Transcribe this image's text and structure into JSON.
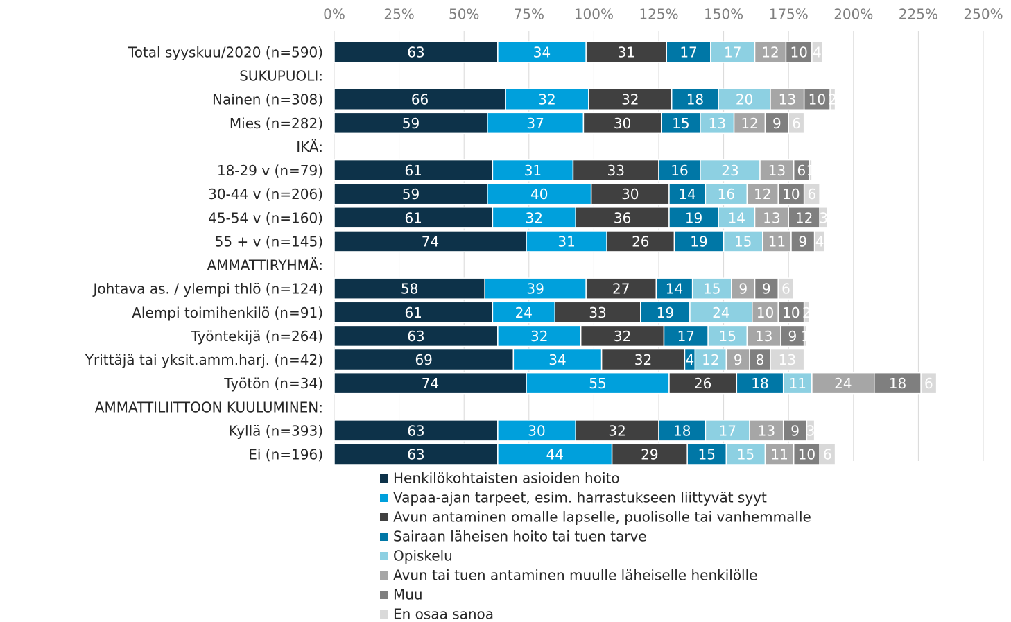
{
  "chart_data": {
    "type": "stacked_bar_horizontal",
    "categories": [
      "Total syyskuu/2020 (n=590)",
      "SUKUPUOLI:",
      "Nainen (n=308)",
      "Mies (n=282)",
      "IKÄ:",
      "18-29 v (n=79)",
      "30-44 v (n=206)",
      "45-54 v (n=160)",
      "55 + v (n=145)",
      "AMMATTIRYHMÄ:",
      "Johtava as. / ylempi thlö (n=124)",
      "Alempi toimihenkilö (n=91)",
      "Työntekijä (n=264)",
      "Yrittäjä tai yksit.amm.harj. (n=42)",
      "Työtön (n=34)",
      "AMMATTILIITTOON KUULUMINEN:",
      "Kyllä (n=393)",
      "Ei (n=196)"
    ],
    "series": [
      {
        "name": "Henkilökohtaisten asioiden hoito",
        "color": "#0d3249",
        "values": [
          63,
          null,
          66,
          59,
          null,
          61,
          59,
          61,
          74,
          null,
          58,
          61,
          63,
          69,
          74,
          null,
          63,
          63
        ]
      },
      {
        "name": "Vapaa-ajan tarpeet, esim. harrastukseen liittyvät syyt",
        "color": "#00a0dc",
        "values": [
          34,
          null,
          32,
          37,
          null,
          31,
          40,
          32,
          31,
          null,
          39,
          24,
          32,
          34,
          55,
          null,
          30,
          44
        ]
      },
      {
        "name": "Avun antaminen omalle lapselle, puolisolle tai vanhemmalle",
        "color": "#404040",
        "values": [
          31,
          null,
          32,
          30,
          null,
          33,
          30,
          36,
          26,
          null,
          27,
          33,
          32,
          32,
          26,
          null,
          32,
          29
        ]
      },
      {
        "name": "Sairaan läheisen hoito tai tuen tarve",
        "color": "#0077a6",
        "values": [
          17,
          null,
          18,
          15,
          null,
          16,
          14,
          19,
          19,
          null,
          14,
          19,
          17,
          4,
          18,
          null,
          18,
          15
        ]
      },
      {
        "name": "Opiskelu",
        "color": "#8dd0e2",
        "values": [
          17,
          null,
          20,
          13,
          null,
          23,
          16,
          14,
          15,
          null,
          15,
          24,
          15,
          12,
          11,
          null,
          17,
          15
        ]
      },
      {
        "name": "Avun tai tuen antaminen muulle läheiselle henkilölle",
        "color": "#a6a6a6",
        "values": [
          12,
          null,
          13,
          12,
          null,
          13,
          12,
          13,
          11,
          null,
          9,
          10,
          13,
          9,
          24,
          null,
          13,
          11
        ]
      },
      {
        "name": "Muu",
        "color": "#7f7f7f",
        "values": [
          10,
          null,
          10,
          9,
          null,
          6,
          10,
          12,
          9,
          null,
          9,
          10,
          9,
          8,
          18,
          null,
          9,
          10
        ]
      },
      {
        "name": "En osaa sanoa",
        "color": "#d9d9d9",
        "values": [
          4,
          null,
          2,
          6,
          null,
          1,
          6,
          3,
          4,
          null,
          6,
          2,
          1,
          13,
          6,
          null,
          3,
          6
        ]
      }
    ],
    "xlim": [
      0,
      250
    ],
    "xticks": [
      {
        "value": 0,
        "label": "0%"
      },
      {
        "value": 25,
        "label": "25%"
      },
      {
        "value": 50,
        "label": "50%"
      },
      {
        "value": 75,
        "label": "75%"
      },
      {
        "value": 100,
        "label": "100%"
      },
      {
        "value": 125,
        "label": "125%"
      },
      {
        "value": 150,
        "label": "150%"
      },
      {
        "value": 175,
        "label": "175%"
      },
      {
        "value": 200,
        "label": "200%"
      },
      {
        "value": 225,
        "label": "225%"
      },
      {
        "value": 250,
        "label": "250%"
      }
    ],
    "grid": true
  }
}
